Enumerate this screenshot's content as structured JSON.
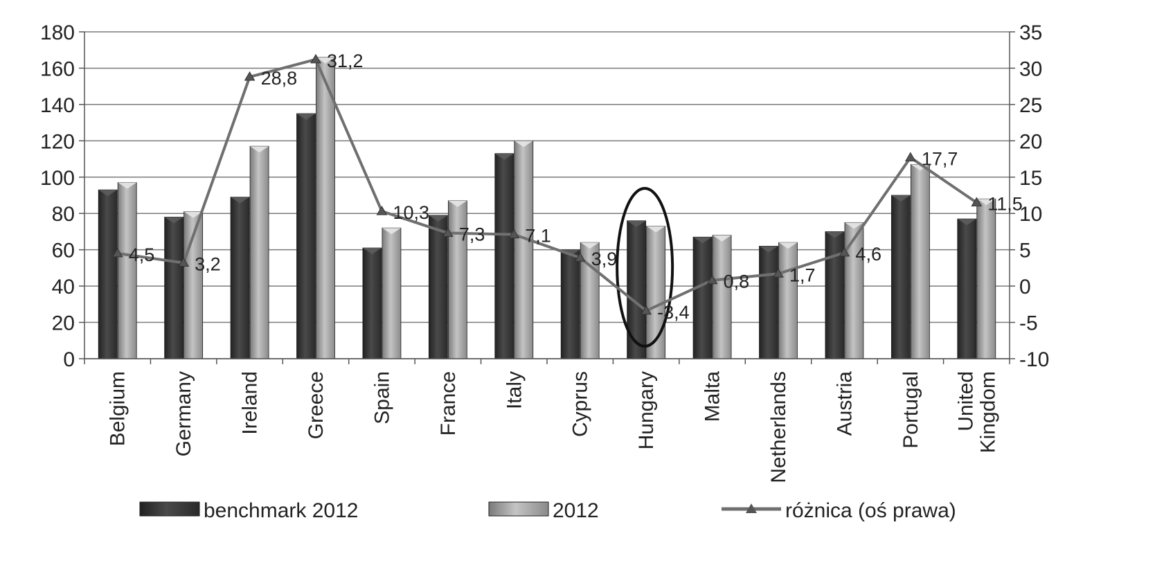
{
  "chart_data": {
    "type": "bar",
    "categories": [
      [
        "Belgium"
      ],
      [
        "Germany"
      ],
      [
        "Ireland"
      ],
      [
        "Greece"
      ],
      [
        "Spain"
      ],
      [
        "France"
      ],
      [
        "Italy"
      ],
      [
        "Cyprus"
      ],
      [
        "Hungary"
      ],
      [
        "Malta"
      ],
      [
        "Netherlands"
      ],
      [
        "Austria"
      ],
      [
        "Portugal"
      ],
      [
        "United",
        "Kingdom"
      ]
    ],
    "series": [
      {
        "name": "benchmark 2012",
        "type": "bar",
        "axis": "left",
        "color": "#3f3f3f",
        "values": [
          93,
          78,
          89,
          135,
          61,
          79,
          113,
          60,
          76,
          67,
          62,
          70,
          90,
          77
        ]
      },
      {
        "name": "2012",
        "type": "bar",
        "axis": "left",
        "color": "#9a9a9a",
        "values": [
          97,
          81,
          117,
          166,
          72,
          87,
          120,
          64,
          73,
          68,
          64,
          75,
          107,
          88
        ]
      },
      {
        "name": "różnica (oś prawa)",
        "type": "line",
        "axis": "right",
        "color": "#6f6f6f",
        "values": [
          4.5,
          3.2,
          28.8,
          31.2,
          10.3,
          7.3,
          7.1,
          3.9,
          -3.4,
          0.8,
          1.7,
          4.6,
          17.7,
          11.5
        ],
        "labels": [
          "4,5",
          "3,2",
          "28,8",
          "31,2",
          "10,3",
          "7,3",
          "7,1",
          "3,9",
          "-3,4",
          "0,8",
          "1,7",
          "4,6",
          "17,7",
          "11,5"
        ]
      }
    ],
    "y_left": {
      "min": 0,
      "max": 180,
      "step": 20
    },
    "y_right": {
      "min": -10,
      "max": 35,
      "step": 5
    },
    "grid": true,
    "legend_position": "bottom",
    "highlight": "Hungary"
  }
}
